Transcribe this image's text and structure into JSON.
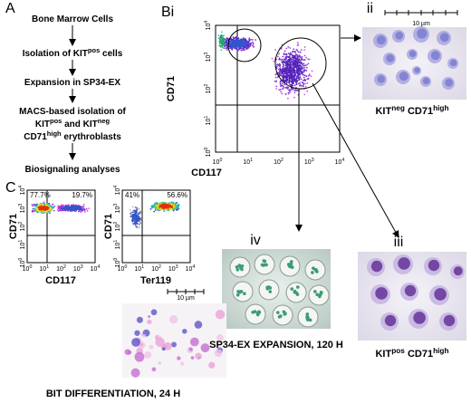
{
  "panel_a": {
    "label": "A",
    "steps": [
      [
        {
          "text": "Bone Marrow Cells"
        }
      ],
      [
        {
          "text": "Isolation of KIT"
        },
        {
          "sup": "pos"
        },
        {
          "text": " cells"
        }
      ],
      [
        {
          "text": "Expansion in SP34-EX"
        }
      ],
      [
        {
          "text": "MACS-based isolation of"
        }
      ],
      [
        {
          "text": "KIT"
        },
        {
          "sup": "pos"
        },
        {
          "text": " and KIT"
        },
        {
          "sup": "neg"
        }
      ],
      [
        {
          "text": "CD71"
        },
        {
          "sup": "high"
        },
        {
          "text": " erythroblasts"
        }
      ],
      [
        {
          "text": "Biosignaling analyses"
        }
      ]
    ]
  },
  "panel_b": {
    "label": "Bi",
    "y_label": "CD71",
    "x_label": "CD117",
    "ticks": [
      {
        "base": "10",
        "exp": "0"
      },
      {
        "base": "10",
        "exp": "1"
      },
      {
        "base": "10",
        "exp": "2"
      },
      {
        "base": "10",
        "exp": "3"
      },
      {
        "base": "10",
        "exp": "4"
      }
    ]
  },
  "image_ii": {
    "label": "ii",
    "scale": "10 µm",
    "caption": [
      {
        "text": "KIT"
      },
      {
        "sup": "neg"
      },
      {
        "text": " CD71"
      },
      {
        "sup": "high"
      }
    ]
  },
  "image_iii": {
    "label": "iii",
    "caption": [
      {
        "text": "KIT"
      },
      {
        "sup": "pos"
      },
      {
        "text": " CD71"
      },
      {
        "sup": "high"
      }
    ]
  },
  "image_iv": {
    "label": "iv",
    "caption": "SP34-EX EXPANSION, 120 H"
  },
  "panel_c": {
    "label": "C",
    "plots": [
      {
        "y_label": "CD71",
        "x_label": "CD117",
        "quadrants": [
          "77.7%",
          "19.7%"
        ]
      },
      {
        "y_label": "CD71",
        "x_label": "Ter119",
        "quadrants": [
          "41%",
          "56.6%"
        ]
      }
    ],
    "ticks": [
      {
        "base": "10",
        "exp": "0"
      },
      {
        "base": "10",
        "exp": "1"
      },
      {
        "base": "10",
        "exp": "2"
      },
      {
        "base": "10",
        "exp": "3"
      },
      {
        "base": "10",
        "exp": "4"
      }
    ],
    "scale": "10 µm",
    "caption": "BIT DIFFERENTIATION, 24 H"
  }
}
